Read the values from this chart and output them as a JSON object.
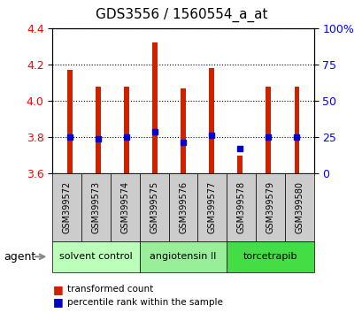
{
  "title": "GDS3556 / 1560554_a_at",
  "samples": [
    "GSM399572",
    "GSM399573",
    "GSM399574",
    "GSM399575",
    "GSM399576",
    "GSM399577",
    "GSM399578",
    "GSM399579",
    "GSM399580"
  ],
  "bar_bottom": 3.6,
  "bar_tops": [
    4.17,
    4.08,
    4.08,
    4.32,
    4.07,
    4.18,
    3.7,
    4.08,
    4.08
  ],
  "percentile_values": [
    3.8,
    3.79,
    3.8,
    3.83,
    3.77,
    3.81,
    3.74,
    3.8,
    3.8
  ],
  "ylim_left": [
    3.6,
    4.4
  ],
  "ylim_right": [
    0,
    100
  ],
  "yticks_left": [
    3.6,
    3.8,
    4.0,
    4.2,
    4.4
  ],
  "yticks_right": [
    0,
    25,
    50,
    75,
    100
  ],
  "ytick_labels_right": [
    "0",
    "25",
    "50",
    "75",
    "100%"
  ],
  "bar_color": "#cc2200",
  "dot_color": "#0000cc",
  "bar_width": 0.18,
  "groups": [
    {
      "label": "solvent control",
      "indices": [
        0,
        1,
        2
      ],
      "color": "#bbffbb"
    },
    {
      "label": "angiotensin II",
      "indices": [
        3,
        4,
        5
      ],
      "color": "#99ee99"
    },
    {
      "label": "torcetrapib",
      "indices": [
        6,
        7,
        8
      ],
      "color": "#44dd44"
    }
  ],
  "agent_label": "agent",
  "legend_red": "transformed count",
  "legend_blue": "percentile rank within the sample",
  "sample_box_color": "#cccccc",
  "title_fontsize": 11,
  "tick_fontsize": 9,
  "small_fontsize": 7
}
